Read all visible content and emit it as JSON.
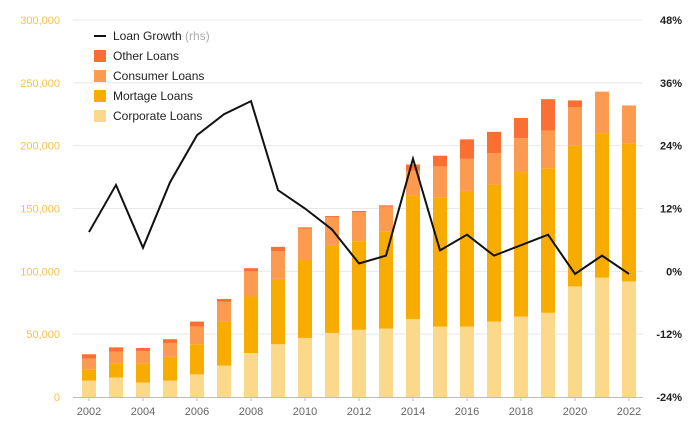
{
  "chart_data": {
    "type": "bar",
    "stacked": true,
    "x": [
      2002,
      2003,
      2004,
      2005,
      2006,
      2007,
      2008,
      2009,
      2010,
      2011,
      2012,
      2013,
      2014,
      2015,
      2016,
      2017,
      2018,
      2019,
      2020,
      2021,
      2022
    ],
    "x_tick_labels": [
      "2002",
      "2004",
      "2006",
      "2008",
      "2010",
      "2012",
      "2014",
      "2016",
      "2018",
      "2020",
      "2022"
    ],
    "y_left": {
      "range": [
        0,
        300000
      ],
      "tick_labels": [
        "0",
        "50,000",
        "100,000",
        "150,000",
        "200,000",
        "250,000",
        "300,000"
      ]
    },
    "y_right": {
      "range": [
        -24,
        48
      ],
      "tick_labels": [
        "-24%",
        "-12%",
        "0%",
        "12%",
        "24%",
        "36%",
        "48%"
      ]
    },
    "series": [
      {
        "name": "Corporate Loans",
        "color": "#fcd98a",
        "axis": "left",
        "values": [
          13000,
          15500,
          11500,
          13000,
          18000,
          25000,
          35000,
          42000,
          47000,
          51000,
          53500,
          54500,
          62000,
          56000,
          56000,
          60000,
          64000,
          67000,
          88000,
          95000,
          92000
        ]
      },
      {
        "name": "Mortage Loans",
        "color": "#f9ac00",
        "axis": "left",
        "values": [
          9000,
          11000,
          15000,
          19000,
          24000,
          35000,
          45000,
          52000,
          62000,
          70000,
          70000,
          77000,
          98000,
          103000,
          108000,
          109000,
          115000,
          115000,
          112000,
          115000,
          110000
        ]
      },
      {
        "name": "Consumer Loans",
        "color": "#fc9a50",
        "axis": "left",
        "values": [
          8500,
          9500,
          10000,
          11000,
          14000,
          16000,
          20000,
          22000,
          25000,
          22000,
          23500,
          20000,
          20000,
          24500,
          25500,
          25000,
          27000,
          30000,
          30500,
          33000,
          30000
        ]
      },
      {
        "name": "Other Loans",
        "color": "#fb6f32",
        "axis": "left",
        "values": [
          3500,
          3500,
          2500,
          3000,
          4000,
          2000,
          2500,
          3500,
          1000,
          1000,
          1000,
          1000,
          5000,
          8500,
          15500,
          17000,
          16000,
          25000,
          5500,
          0,
          0
        ]
      },
      {
        "name": "Loan Growth",
        "note": "(rhs)",
        "type": "line",
        "color": "#111111",
        "axis": "right",
        "values": [
          7.5,
          16.5,
          4.5,
          17,
          26,
          30,
          32.5,
          15.5,
          12,
          8,
          1.5,
          3,
          21.5,
          4,
          7,
          3,
          5,
          7,
          -0.5,
          3,
          -0.5
        ]
      }
    ],
    "legend_order": [
      "Loan Growth",
      "Other Loans",
      "Consumer Loans",
      "Mortage Loans",
      "Corporate Loans"
    ],
    "legend": "top-left",
    "grid": true
  }
}
